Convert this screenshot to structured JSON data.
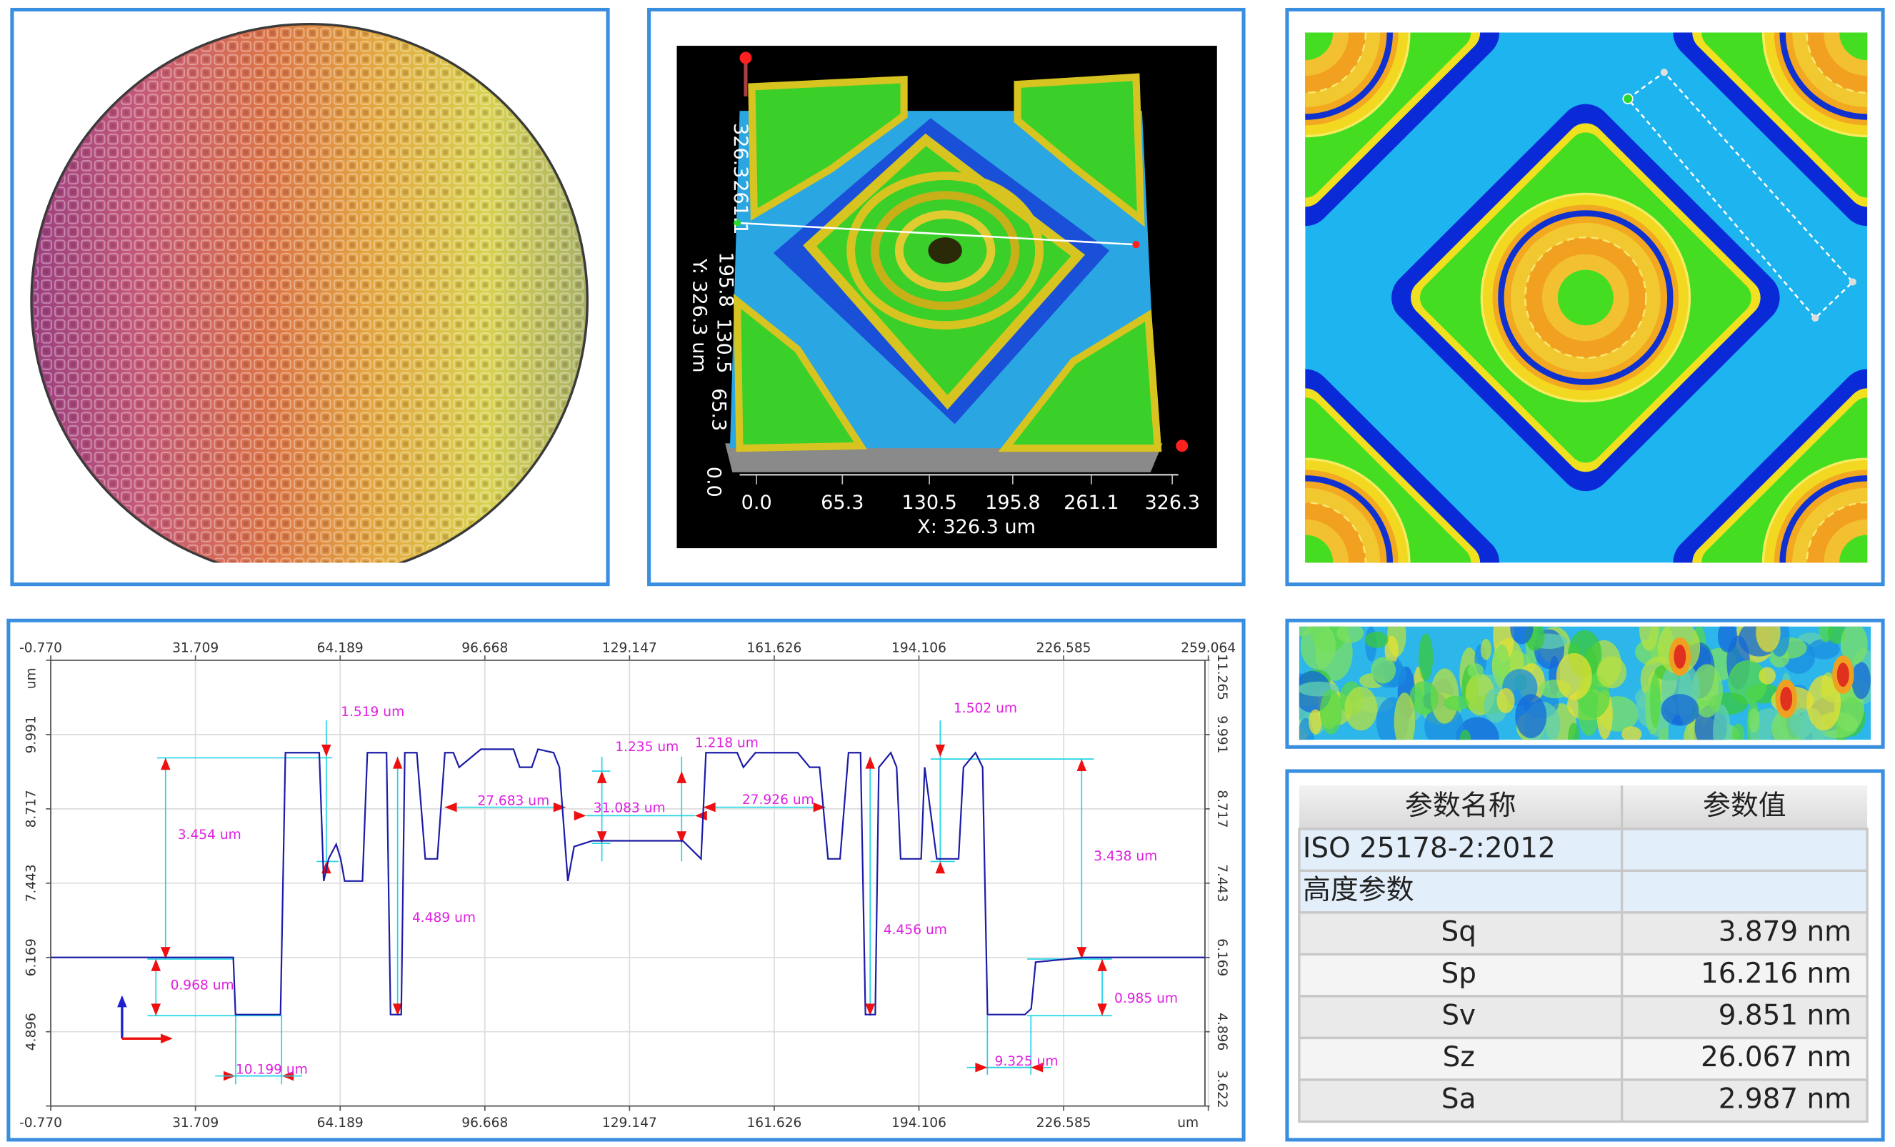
{
  "surface_3d": {
    "y_axis_ticks": [
      "326.3",
      "261.1",
      "195.8",
      "130.5",
      "65.3",
      "0.0"
    ],
    "y_axis_label": "Y: 326.3 um",
    "x_axis_ticks": [
      "0.0",
      "65.3",
      "130.5",
      "195.8",
      "261.1",
      "326.3"
    ],
    "x_axis_label": "X: 326.3 um"
  },
  "chart_data": {
    "type": "line",
    "color": "#1c1ca8",
    "x": [
      -0.77,
      40.2,
      40.7,
      50.8,
      51.9,
      59.5,
      60.5,
      61.6,
      63.3,
      64.3,
      65.2,
      69.2,
      70.3,
      74.6,
      75.5,
      77.9,
      78.7,
      81.4,
      83.3,
      86.0,
      87.7,
      89.6,
      90.9,
      95.8,
      103.1,
      104.5,
      107.2,
      108.6,
      112.1,
      113.4,
      115.3,
      116.7,
      120.8,
      141.1,
      145.2,
      146.3,
      153.3,
      154.7,
      157.4,
      166.9,
      169.6,
      171.8,
      173.7,
      176.4,
      178.3,
      181.0,
      182.1,
      184.3,
      185.1,
      187.8,
      189.1,
      190.0,
      194.6,
      195.4,
      198.1,
      203.0,
      204.1,
      206.8,
      208.4,
      209.5,
      217.9,
      219.3,
      220.3,
      231.2,
      258.3
    ],
    "values": [
      6.17,
      6.17,
      5.19,
      5.19,
      9.68,
      9.68,
      7.48,
      7.86,
      8.11,
      7.86,
      7.48,
      7.48,
      9.68,
      9.68,
      5.19,
      5.19,
      9.68,
      9.68,
      7.86,
      7.86,
      9.68,
      9.68,
      9.43,
      9.74,
      9.74,
      9.43,
      9.43,
      9.74,
      9.68,
      9.43,
      7.48,
      8.07,
      8.17,
      8.17,
      7.86,
      9.68,
      9.68,
      9.43,
      9.68,
      9.68,
      9.43,
      9.43,
      7.86,
      7.86,
      9.68,
      9.68,
      5.19,
      5.19,
      9.43,
      9.68,
      9.43,
      7.86,
      7.86,
      9.43,
      7.86,
      7.86,
      9.43,
      9.68,
      9.43,
      5.19,
      5.19,
      5.29,
      6.09,
      6.17,
      6.17
    ],
    "xlim": [
      -0.77,
      258.3
    ],
    "ylim": [
      3.622,
      11.265
    ],
    "xticks": [
      {
        "value": -0.77,
        "label": "-0.770"
      },
      31.709,
      64.189,
      96.668,
      129.147,
      161.626,
      194.106,
      226.585,
      259.064
    ],
    "yticks": [
      3.622,
      4.896,
      6.169,
      7.443,
      8.717,
      9.991,
      11.265
    ],
    "xlabel": "um",
    "ylabel": "um",
    "grid": true,
    "annotations": [
      "1.519 um",
      "3.454 um",
      "0.968 um",
      "10.199 um",
      "4.489 um",
      "27.683 um",
      "1.235 um",
      "31.083 um",
      "1.218 um",
      "27.926 um",
      "1.502 um",
      "4.456 um",
      "3.438 um",
      "0.985 um",
      "9.325 um"
    ]
  },
  "table": {
    "header": [
      "参数名称",
      "参数值"
    ],
    "rows": [
      [
        "ISO 25178-2:2012"
      ],
      [
        "高度参数"
      ],
      [
        "Sq",
        "3.879 nm"
      ],
      [
        "Sp",
        "16.216 nm"
      ],
      [
        "Sv",
        "9.851 nm"
      ],
      [
        "Sz",
        "26.067 nm"
      ],
      [
        "Sa",
        "2.987 nm"
      ]
    ]
  }
}
